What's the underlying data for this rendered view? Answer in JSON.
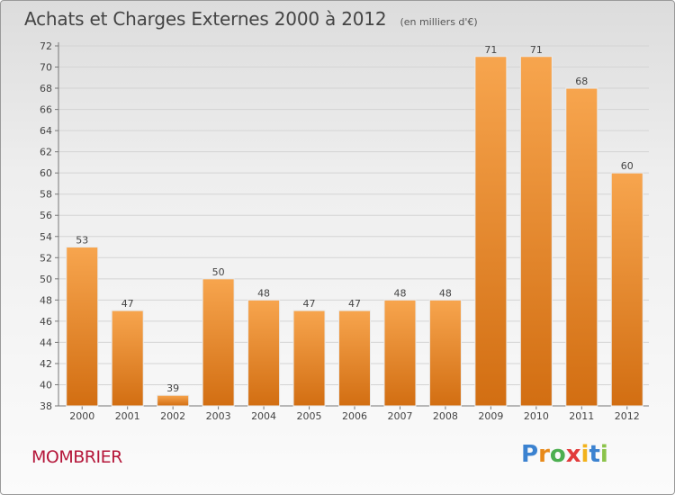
{
  "header": {
    "title": "Achats et Charges Externes 2000 à 2012",
    "subtitle": "(en milliers d'€)"
  },
  "footer": {
    "place": "MOMBRIER",
    "logo_text": "Proxiti"
  },
  "colors": {
    "bar_light": "#f7a54e",
    "bar_dark": "#d26e12",
    "title": "#444444",
    "place": "#b5173a"
  },
  "chart_data": {
    "type": "bar",
    "title": "Achats et Charges Externes 2000 à 2012",
    "subtitle": "(en milliers d'€)",
    "categories": [
      "2000",
      "2001",
      "2002",
      "2003",
      "2004",
      "2005",
      "2006",
      "2007",
      "2008",
      "2009",
      "2010",
      "2011",
      "2012"
    ],
    "values": [
      53,
      47,
      39,
      50,
      48,
      47,
      47,
      48,
      48,
      71,
      71,
      68,
      60
    ],
    "data_labels": [
      "53",
      "47",
      "39",
      "50",
      "48",
      "47",
      "47",
      "48",
      "48",
      "71",
      "71",
      "68",
      "60"
    ],
    "ylim": [
      38,
      72
    ],
    "yticks": [
      38,
      40,
      42,
      44,
      46,
      48,
      50,
      52,
      54,
      56,
      58,
      60,
      62,
      64,
      66,
      68,
      70,
      72
    ],
    "grid": true,
    "xlabel": "",
    "ylabel": ""
  }
}
